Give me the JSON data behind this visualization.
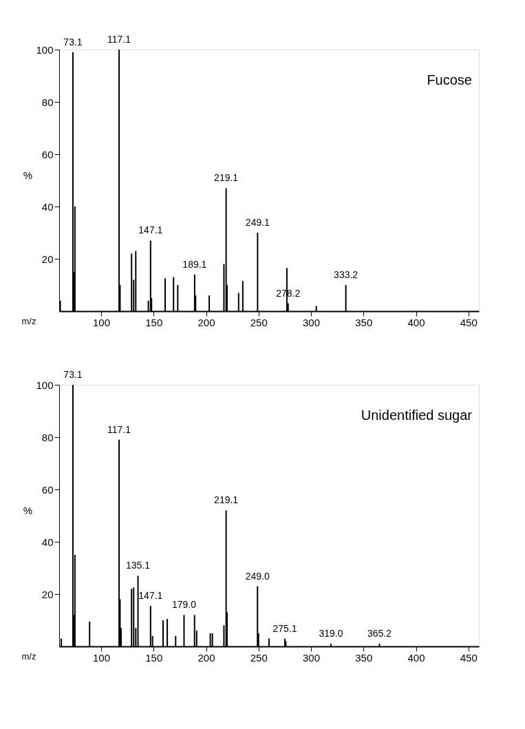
{
  "chart_data": [
    {
      "type": "bar",
      "title": "Fucose",
      "xlabel": "m/z",
      "ylabel": "%",
      "xlim": [
        60,
        460
      ],
      "ylim": [
        0,
        100
      ],
      "xticks": [
        100,
        150,
        200,
        250,
        300,
        350,
        400,
        450
      ],
      "yticks": [
        20,
        40,
        60,
        80,
        100
      ],
      "grid": false,
      "x": [
        61,
        73.1,
        74,
        75,
        117.1,
        118,
        129,
        131,
        133,
        145,
        147.1,
        148,
        161,
        169,
        173,
        189.1,
        190,
        203,
        217,
        219.1,
        220,
        231,
        235,
        249.1,
        277,
        278.2,
        305,
        333.2
      ],
      "series": [
        {
          "color": "#000000",
          "values": [
            4,
            99,
            15,
            40,
            100,
            10,
            22,
            12,
            23,
            4,
            27,
            5,
            12.5,
            13,
            10,
            14,
            6,
            6,
            18,
            47,
            10,
            7,
            11.5,
            30,
            16.5,
            3,
            2,
            10
          ]
        }
      ],
      "annotations": [
        {
          "text": "73.1",
          "x": 73.1,
          "y": 99
        },
        {
          "text": "117.1",
          "x": 117.1,
          "y": 100
        },
        {
          "text": "147.1",
          "x": 147.1,
          "y": 27
        },
        {
          "text": "189.1",
          "x": 189.1,
          "y": 14
        },
        {
          "text": "219.1",
          "x": 219.1,
          "y": 47
        },
        {
          "text": "249.1",
          "x": 249.1,
          "y": 30
        },
        {
          "text": "278.2",
          "x": 278.2,
          "y": 3
        },
        {
          "text": "333.2",
          "x": 333.2,
          "y": 10
        }
      ]
    },
    {
      "type": "bar",
      "title": "Unidentified sugar",
      "xlabel": "m/z",
      "ylabel": "%",
      "xlim": [
        60,
        460
      ],
      "ylim": [
        0,
        100
      ],
      "xticks": [
        100,
        150,
        200,
        250,
        300,
        350,
        400,
        450
      ],
      "yticks": [
        20,
        40,
        60,
        80,
        100
      ],
      "grid": false,
      "x": [
        62,
        73.1,
        74,
        75,
        89,
        117.1,
        118,
        119,
        129,
        131,
        133,
        135.1,
        147.1,
        149,
        159,
        163,
        171,
        179.0,
        189,
        191,
        204,
        206,
        217,
        219.1,
        220,
        249.0,
        250,
        260,
        275.1,
        276,
        319.0,
        365.2
      ],
      "series": [
        {
          "color": "#000000",
          "values": [
            3,
            100,
            12,
            35,
            9.5,
            79,
            18,
            7,
            22,
            22.5,
            7,
            27,
            15.5,
            4,
            10,
            10.5,
            4,
            12,
            12,
            6,
            5,
            5,
            8,
            52,
            13,
            23,
            5,
            3,
            3,
            2,
            1,
            1
          ]
        }
      ],
      "annotations": [
        {
          "text": "73.1",
          "x": 73.1,
          "y": 100
        },
        {
          "text": "117.1",
          "x": 117.1,
          "y": 79
        },
        {
          "text": "135.1",
          "x": 135.1,
          "y": 27
        },
        {
          "text": "147.1",
          "x": 147.1,
          "y": 15.5
        },
        {
          "text": "179.0",
          "x": 179.0,
          "y": 12
        },
        {
          "text": "219.1",
          "x": 219.1,
          "y": 52
        },
        {
          "text": "249.0",
          "x": 249.0,
          "y": 23
        },
        {
          "text": "275.1",
          "x": 275.1,
          "y": 3
        },
        {
          "text": "319.0",
          "x": 319.0,
          "y": 1
        },
        {
          "text": "365.2",
          "x": 365.2,
          "y": 1
        }
      ]
    }
  ]
}
